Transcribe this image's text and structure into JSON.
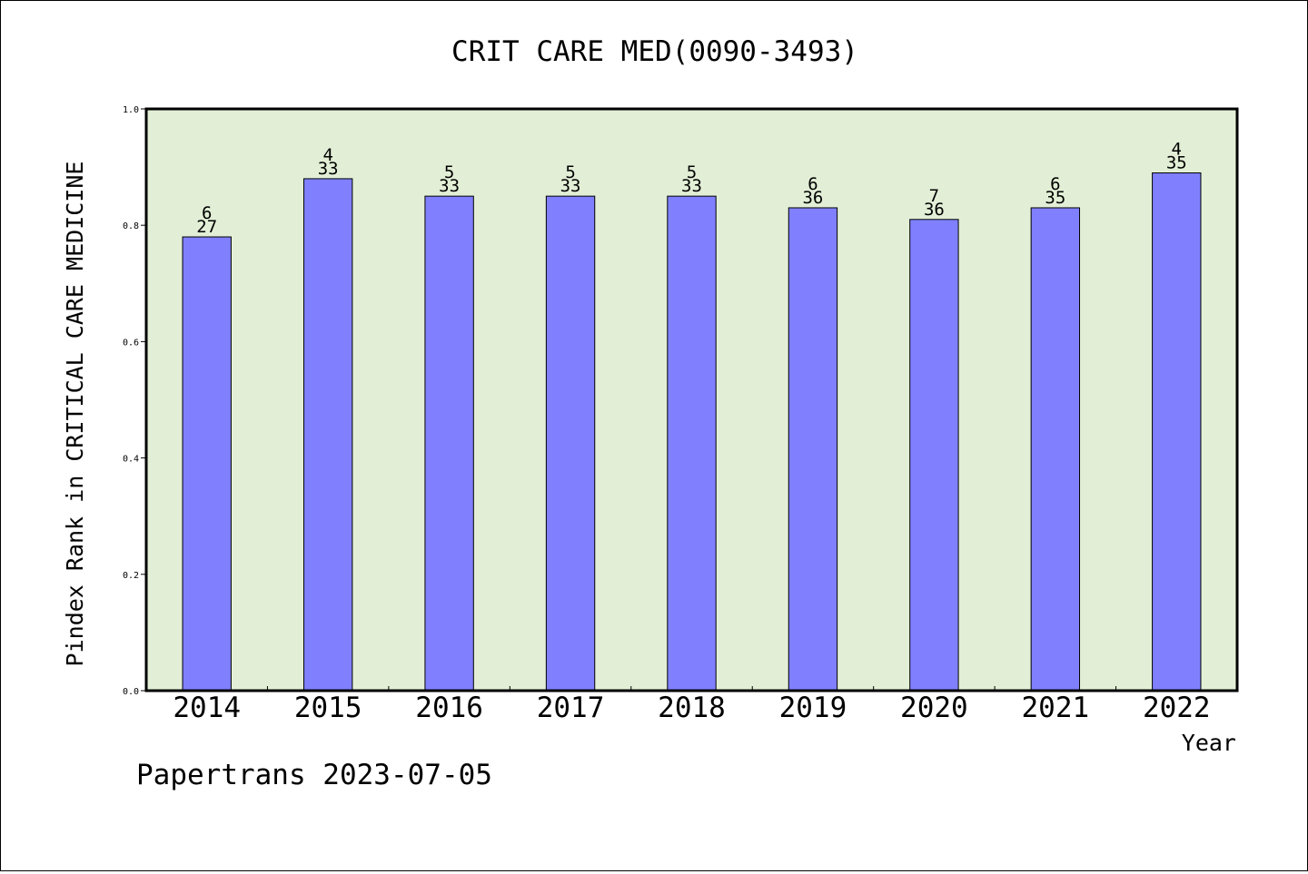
{
  "chart_data": {
    "type": "bar",
    "title": "CRIT CARE MED(0090-3493)",
    "xlabel": "Year",
    "ylabel": "Pindex Rank in CRITICAL CARE MEDICINE",
    "ylim": [
      0,
      1.0
    ],
    "yticks": [
      "0.0",
      "0.2",
      "0.4",
      "0.6",
      "0.8",
      "1.0"
    ],
    "categories": [
      "2014",
      "2015",
      "2016",
      "2017",
      "2018",
      "2019",
      "2020",
      "2021",
      "2022"
    ],
    "values": [
      0.78,
      0.88,
      0.85,
      0.85,
      0.85,
      0.83,
      0.81,
      0.83,
      0.89
    ],
    "rank_labels": [
      "6",
      "4",
      "5",
      "5",
      "5",
      "6",
      "7",
      "6",
      "4"
    ],
    "total_labels": [
      "27",
      "33",
      "33",
      "33",
      "33",
      "36",
      "36",
      "35",
      "35"
    ],
    "grid": false,
    "colors": {
      "plot_background": "#e2efd6",
      "bar": "#8080ff",
      "axis": "#000000"
    }
  },
  "footer": "Papertrans 2023-07-05"
}
